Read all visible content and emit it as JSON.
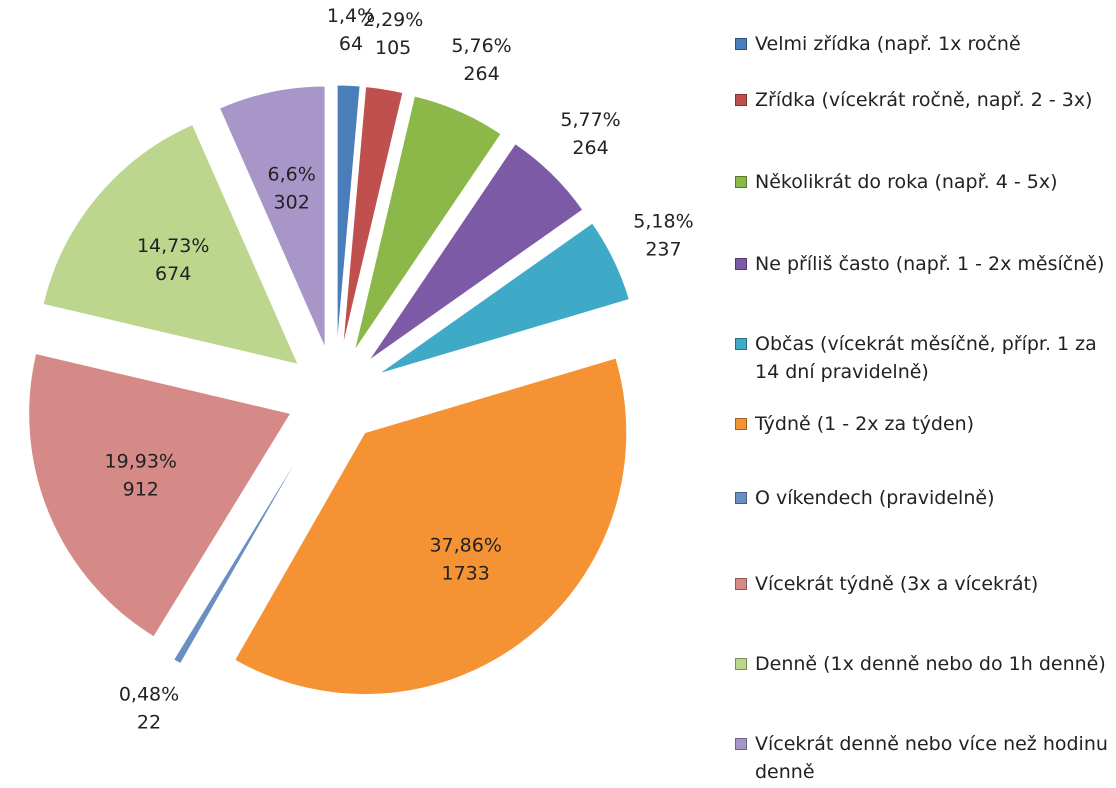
{
  "chart_data": {
    "type": "pie",
    "categories": [
      "Velmi zřídka (např. 1x ročně",
      "Zřídka (vícekrát ročně, např. 2 - 3x)",
      "Několikrát do roka (např. 4 - 5x)",
      "Ne příliš často (např. 1 - 2x měsíčně)",
      "Občas (vícekrát měsíčně, přípr. 1 za 14 dní pravidelně)",
      "Týdně (1 - 2x za týden)",
      "O víkendech (pravidelně)",
      "Vícekrát týdně (3x a vícekrát)",
      "Denně (1x denně nebo do 1h denně)",
      "Vícekrát denně nebo více než hodinu denně"
    ],
    "values": [
      64,
      105,
      264,
      264,
      237,
      1733,
      22,
      912,
      674,
      302
    ],
    "percentages": [
      1.4,
      2.29,
      5.76,
      5.77,
      5.18,
      37.86,
      0.48,
      19.93,
      14.73,
      6.6
    ],
    "percentage_labels": [
      "1,4%",
      "2,29%",
      "5,76%",
      "5,77%",
      "5,18%",
      "37,86%",
      "0,48%",
      "19,93%",
      "14,73%",
      "6,6%"
    ],
    "colors": [
      "#4a7ebb",
      "#c0504d",
      "#8cb84a",
      "#7d5aa6",
      "#3fa9c8",
      "#f59234",
      "#6a8fc2",
      "#d68a88",
      "#bcd68e",
      "#a996c8"
    ],
    "legend": "right"
  }
}
